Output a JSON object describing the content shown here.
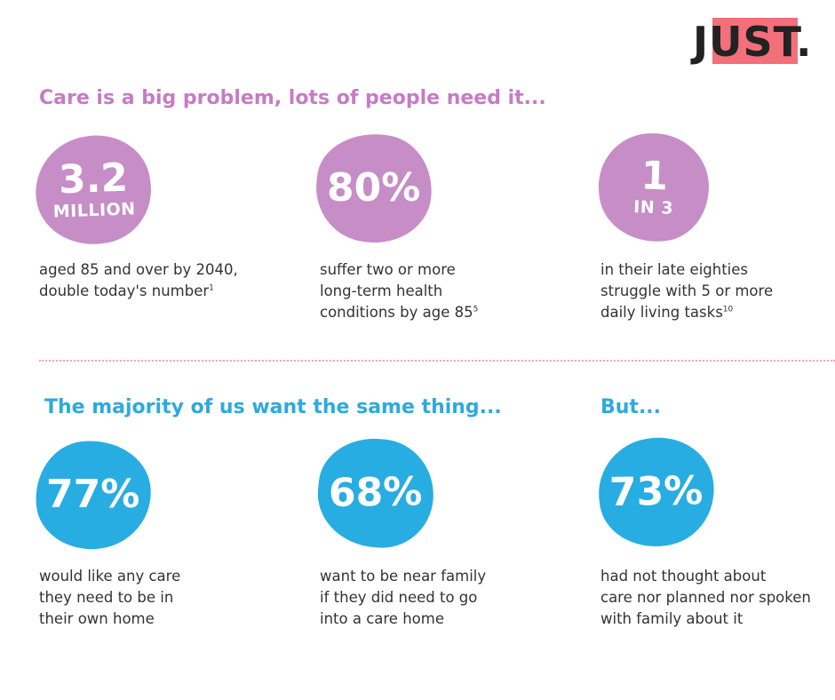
{
  "logo": {
    "text": "JUST.",
    "highlight_color": "#f36f7a"
  },
  "section1": {
    "heading": "Care is a big problem, lots of people need it...",
    "color": "#c77bc7",
    "stats": [
      {
        "value": "3.2",
        "unit": "MILLION",
        "lines": [
          "aged 85 and over by 2040,",
          "double today's number"
        ],
        "footnote": "1"
      },
      {
        "value": "80%",
        "unit": "",
        "lines": [
          "suffer two or more",
          "long-term health",
          "conditions by age 85"
        ],
        "footnote": "5"
      },
      {
        "value": "1",
        "unit": "IN 3",
        "lines": [
          "in their late eighties",
          "struggle with 5 or more",
          "daily living tasks"
        ],
        "footnote": "10"
      }
    ]
  },
  "section2": {
    "heading": "The majority of us want the same thing...",
    "heading_but": "But...",
    "color": "#2fa9df",
    "stats": [
      {
        "value": "77%",
        "lines": [
          "would like any care",
          "they need to be in",
          "their own home"
        ]
      },
      {
        "value": "68%",
        "lines": [
          "want to be near family",
          "if they did need to go",
          "into a care home"
        ]
      },
      {
        "value": "73%",
        "lines": [
          "had not thought about",
          "care nor planned nor spoken",
          "with family about it"
        ]
      }
    ]
  }
}
